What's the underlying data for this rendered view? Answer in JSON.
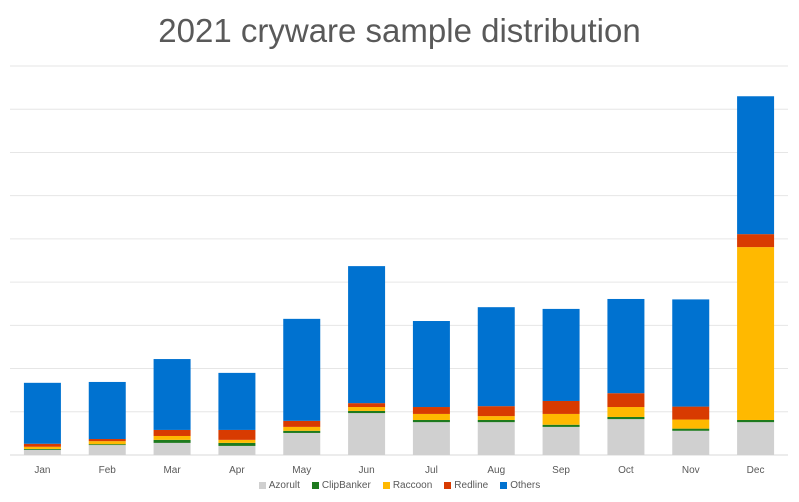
{
  "chart_data": {
    "type": "bar",
    "stacked": true,
    "title": "2021 cryware sample distribution",
    "xlabel": "",
    "ylabel": "",
    "ylim": [
      0,
      9
    ],
    "grid": true,
    "y_tick_labels_shown": false,
    "legend_position": "bottom",
    "categories": [
      "Jan",
      "Feb",
      "Mar",
      "Apr",
      "May",
      "Jun",
      "Jul",
      "Aug",
      "Sep",
      "Oct",
      "Nov",
      "Dec"
    ],
    "series": [
      {
        "name": "Azorult",
        "color": "#d0d0d0",
        "values": [
          0.12,
          0.23,
          0.28,
          0.21,
          0.51,
          0.97,
          0.76,
          0.76,
          0.65,
          0.83,
          0.56,
          0.76
        ]
      },
      {
        "name": "ClipBanker",
        "color": "#1e7a1e",
        "values": [
          0.02,
          0.02,
          0.07,
          0.07,
          0.05,
          0.05,
          0.05,
          0.05,
          0.05,
          0.05,
          0.05,
          0.05
        ]
      },
      {
        "name": "Raccoon",
        "color": "#ffb900",
        "values": [
          0.05,
          0.07,
          0.09,
          0.07,
          0.09,
          0.09,
          0.14,
          0.09,
          0.25,
          0.23,
          0.21,
          4.0
        ]
      },
      {
        "name": "Redline",
        "color": "#d83b01",
        "values": [
          0.07,
          0.05,
          0.14,
          0.23,
          0.14,
          0.09,
          0.16,
          0.23,
          0.3,
          0.32,
          0.3,
          0.3
        ]
      },
      {
        "name": "Others",
        "color": "#0072d0",
        "values": [
          1.41,
          1.32,
          1.64,
          1.32,
          2.36,
          3.17,
          1.99,
          2.29,
          2.13,
          2.18,
          2.48,
          3.19
        ]
      }
    ]
  }
}
